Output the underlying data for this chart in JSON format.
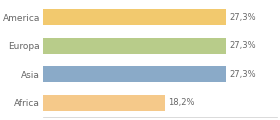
{
  "categories": [
    "America",
    "Europa",
    "Asia",
    "Africa"
  ],
  "values": [
    27.3,
    27.3,
    27.3,
    18.2
  ],
  "labels": [
    "27,3%",
    "27,3%",
    "27,3%",
    "18,2%"
  ],
  "colors": [
    "#f2c96e",
    "#b8cc8a",
    "#8aaac8",
    "#f5c98a"
  ],
  "background_color": "#ffffff",
  "xlim": [
    0,
    35
  ],
  "bar_height": 0.55,
  "label_fontsize": 6.0,
  "category_fontsize": 6.5,
  "text_color": "#666666"
}
